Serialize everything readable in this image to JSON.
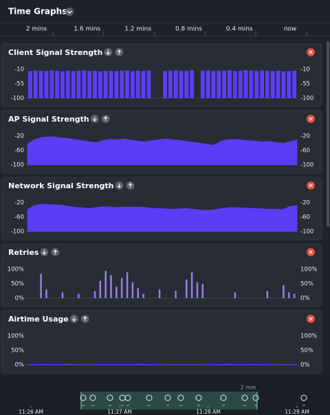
{
  "header": {
    "title": "Time Graphs",
    "time_labels": [
      "2 mins",
      "1.6 mins",
      "1.2 mins",
      "0.8 mins",
      "0.4 mins",
      "now"
    ]
  },
  "chart_data": [
    {
      "type": "bar",
      "title": "Client Signal Strength",
      "color": "#5b3df5",
      "ylim": [
        -100,
        -10
      ],
      "yticks": [
        -10,
        -55,
        -100
      ],
      "values": [
        -15,
        -14,
        -14,
        -15,
        -13,
        -14,
        -16,
        -14,
        -15,
        -14,
        -13,
        -15,
        -14,
        -16,
        -15,
        -14,
        -15,
        -14,
        -13,
        -15,
        -14,
        -15,
        -14,
        -100,
        -100,
        -15,
        -14,
        -13,
        -15,
        -14,
        -12,
        -100,
        -14,
        -13,
        -15,
        -14,
        -14,
        -13,
        -15,
        -14,
        -12,
        -14,
        -15,
        -13,
        -14,
        -15,
        -14,
        -16,
        -15,
        -14
      ]
    },
    {
      "type": "area",
      "title": "AP Signal Strength",
      "color": "#5b3df5",
      "ylim": [
        -100,
        -20
      ],
      "yticks": [
        -20,
        -60,
        -100
      ],
      "values": [
        -42,
        -30,
        -24,
        -22,
        -23,
        -25,
        -27,
        -30,
        -33,
        -36,
        -38,
        -32,
        -29,
        -30,
        -28,
        -31,
        -34,
        -36,
        -33,
        -30,
        -28,
        -30,
        -32,
        -35,
        -37,
        -40,
        -43,
        -45,
        -34,
        -30,
        -29,
        -31,
        -33,
        -34,
        -36,
        -35,
        -38,
        -40,
        -36,
        -30
      ]
    },
    {
      "type": "area",
      "title": "Network Signal Strength",
      "color": "#5b3df5",
      "ylim": [
        -100,
        -20
      ],
      "yticks": [
        -20,
        -60,
        -100
      ],
      "values": [
        -38,
        -28,
        -24,
        -25,
        -26,
        -27,
        -30,
        -33,
        -34,
        -36,
        -33,
        -31,
        -32,
        -33,
        -32,
        -32,
        -32,
        -33,
        -35,
        -36,
        -37,
        -38,
        -37,
        -36,
        -38,
        -40,
        -41,
        -40,
        -36,
        -34,
        -33,
        -34,
        -35,
        -36,
        -37,
        -38,
        -38,
        -39,
        -30,
        -28
      ]
    },
    {
      "type": "bar",
      "title": "Retries",
      "color": "#9b7fe6",
      "ylim": [
        0,
        100
      ],
      "yticks": [
        {
          "value": 100,
          "label": "100%"
        },
        {
          "value": 50,
          "label": "50%"
        },
        {
          "value": 0,
          "label": "0%"
        }
      ],
      "values": [
        0,
        0,
        85,
        30,
        0,
        0,
        20,
        0,
        0,
        15,
        0,
        0,
        25,
        60,
        95,
        80,
        40,
        70,
        90,
        55,
        35,
        15,
        0,
        0,
        30,
        0,
        0,
        25,
        0,
        65,
        90,
        55,
        50,
        0,
        0,
        0,
        0,
        0,
        20,
        0,
        0,
        0,
        0,
        0,
        25,
        0,
        0,
        45,
        20,
        15
      ]
    },
    {
      "type": "area",
      "title": "Airtime Usage",
      "color": "#5b3df5",
      "ylim": [
        0,
        100
      ],
      "yticks": [
        {
          "value": 100,
          "label": "100%"
        },
        {
          "value": 50,
          "label": "50%"
        },
        {
          "value": 0,
          "label": "0%"
        }
      ],
      "values": [
        1,
        2,
        1,
        2,
        1,
        1,
        2,
        1,
        2,
        1,
        1,
        2,
        1,
        1,
        2,
        1,
        2,
        1,
        1,
        2
      ]
    }
  ],
  "timeline": {
    "window": "2 min",
    "labels": [
      "11:26 AM",
      "11:27 AM",
      "11:28 AM",
      "11:29 AM"
    ]
  }
}
